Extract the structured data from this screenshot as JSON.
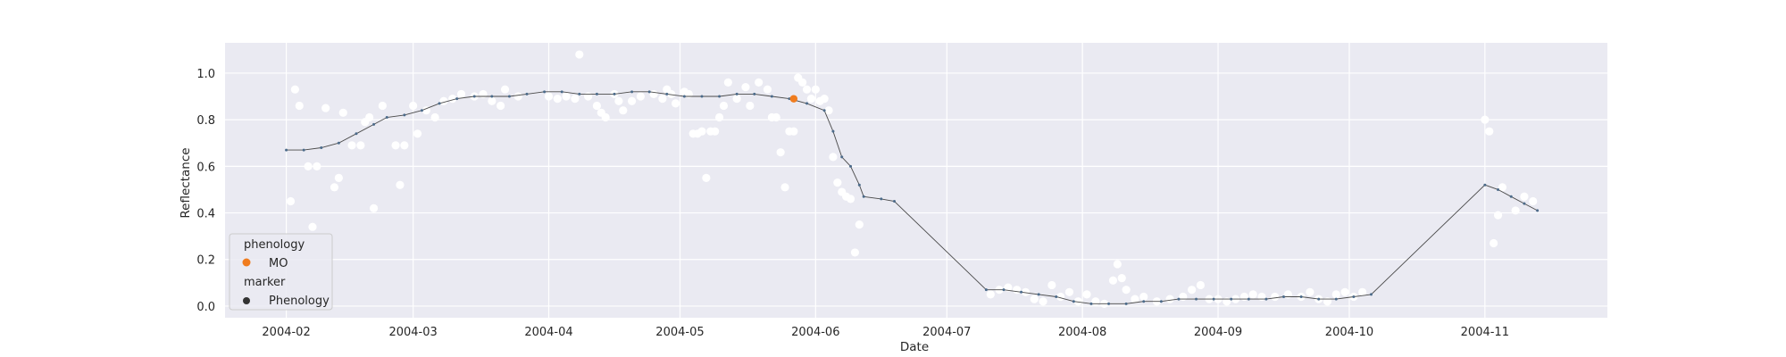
{
  "chart_data": {
    "type": "scatter",
    "title": "",
    "xlabel": "Date",
    "ylabel": "Reflectance",
    "xlim": [
      "2004-01-18",
      "2004-11-29"
    ],
    "ylim": [
      -0.05,
      1.13
    ],
    "x_ticks": [
      "2004-02-01",
      "2004-03-01",
      "2004-04-01",
      "2004-05-01",
      "2004-06-01",
      "2004-07-01",
      "2004-08-01",
      "2004-09-01",
      "2004-10-01",
      "2004-11-01"
    ],
    "x_tick_labels": [
      "2004-02",
      "2004-03",
      "2004-04",
      "2004-05",
      "2004-06",
      "2004-07",
      "2004-08",
      "2004-09",
      "2004-10",
      "2004-11"
    ],
    "y_ticks": [
      0.0,
      0.2,
      0.4,
      0.6,
      0.8,
      1.0
    ],
    "y_tick_labels": [
      "0.0",
      "0.2",
      "0.4",
      "0.6",
      "0.8",
      "1.0"
    ],
    "grid": true,
    "legend": {
      "placement": "lower-left",
      "title1": "phenology",
      "entry1": "MO",
      "title2": "marker",
      "entry2": "Phenology"
    },
    "colors": {
      "background": "#eaeaf2",
      "grid": "#ffffff",
      "observations": "#ffffff",
      "smoothed_line": "#4a4a4a",
      "smoothed_markers": "#4c6b8a",
      "phenology_mo": "#f07c1e",
      "marker_legend": "#333333"
    },
    "series": [
      {
        "role": "observations",
        "points": [
          [
            "2004-02-02",
            0.45
          ],
          [
            "2004-02-03",
            0.93
          ],
          [
            "2004-02-04",
            0.86
          ],
          [
            "2004-02-06",
            0.6
          ],
          [
            "2004-02-07",
            0.34
          ],
          [
            "2004-02-08",
            0.6
          ],
          [
            "2004-02-10",
            0.85
          ],
          [
            "2004-02-12",
            0.51
          ],
          [
            "2004-02-13",
            0.55
          ],
          [
            "2004-02-14",
            0.83
          ],
          [
            "2004-02-16",
            0.69
          ],
          [
            "2004-02-18",
            0.69
          ],
          [
            "2004-02-19",
            0.79
          ],
          [
            "2004-02-20",
            0.81
          ],
          [
            "2004-02-21",
            0.42
          ],
          [
            "2004-02-23",
            0.86
          ],
          [
            "2004-02-26",
            0.69
          ],
          [
            "2004-02-27",
            0.52
          ],
          [
            "2004-02-28",
            0.69
          ],
          [
            "2004-03-01",
            0.86
          ],
          [
            "2004-03-02",
            0.74
          ],
          [
            "2004-03-04",
            0.84
          ],
          [
            "2004-03-06",
            0.81
          ],
          [
            "2004-03-08",
            0.88
          ],
          [
            "2004-03-10",
            0.89
          ],
          [
            "2004-03-12",
            0.91
          ],
          [
            "2004-03-15",
            0.9
          ],
          [
            "2004-03-17",
            0.91
          ],
          [
            "2004-03-19",
            0.88
          ],
          [
            "2004-03-21",
            0.86
          ],
          [
            "2004-03-22",
            0.93
          ],
          [
            "2004-03-25",
            0.9
          ],
          [
            "2004-04-01",
            0.9
          ],
          [
            "2004-04-03",
            0.89
          ],
          [
            "2004-04-05",
            0.9
          ],
          [
            "2004-04-07",
            0.89
          ],
          [
            "2004-04-08",
            1.08
          ],
          [
            "2004-04-10",
            0.9
          ],
          [
            "2004-04-12",
            0.86
          ],
          [
            "2004-04-13",
            0.83
          ],
          [
            "2004-04-14",
            0.81
          ],
          [
            "2004-04-16",
            0.91
          ],
          [
            "2004-04-17",
            0.88
          ],
          [
            "2004-04-18",
            0.84
          ],
          [
            "2004-04-20",
            0.88
          ],
          [
            "2004-04-22",
            0.9
          ],
          [
            "2004-04-25",
            0.91
          ],
          [
            "2004-04-27",
            0.89
          ],
          [
            "2004-04-28",
            0.93
          ],
          [
            "2004-04-29",
            0.91
          ],
          [
            "2004-04-30",
            0.87
          ],
          [
            "2004-05-02",
            0.92
          ],
          [
            "2004-05-03",
            0.91
          ],
          [
            "2004-05-04",
            0.74
          ],
          [
            "2004-05-05",
            0.74
          ],
          [
            "2004-05-06",
            0.75
          ],
          [
            "2004-05-07",
            0.55
          ],
          [
            "2004-05-08",
            0.75
          ],
          [
            "2004-05-09",
            0.75
          ],
          [
            "2004-05-10",
            0.81
          ],
          [
            "2004-05-11",
            0.86
          ],
          [
            "2004-05-12",
            0.96
          ],
          [
            "2004-05-14",
            0.89
          ],
          [
            "2004-05-16",
            0.94
          ],
          [
            "2004-05-17",
            0.86
          ],
          [
            "2004-05-19",
            0.96
          ],
          [
            "2004-05-21",
            0.93
          ],
          [
            "2004-05-22",
            0.81
          ],
          [
            "2004-05-23",
            0.81
          ],
          [
            "2004-05-24",
            0.66
          ],
          [
            "2004-05-25",
            0.51
          ],
          [
            "2004-05-26",
            0.75
          ],
          [
            "2004-05-27",
            0.75
          ],
          [
            "2004-05-28",
            0.98
          ],
          [
            "2004-05-29",
            0.96
          ],
          [
            "2004-05-30",
            0.93
          ],
          [
            "2004-05-31",
            0.89
          ],
          [
            "2004-06-01",
            0.93
          ],
          [
            "2004-06-02",
            0.88
          ],
          [
            "2004-06-03",
            0.89
          ],
          [
            "2004-06-04",
            0.84
          ],
          [
            "2004-06-05",
            0.64
          ],
          [
            "2004-06-06",
            0.53
          ],
          [
            "2004-06-07",
            0.49
          ],
          [
            "2004-06-08",
            0.47
          ],
          [
            "2004-06-09",
            0.46
          ],
          [
            "2004-06-10",
            0.23
          ],
          [
            "2004-06-11",
            0.35
          ],
          [
            "2004-07-11",
            0.05
          ],
          [
            "2004-07-13",
            0.07
          ],
          [
            "2004-07-15",
            0.08
          ],
          [
            "2004-07-17",
            0.07
          ],
          [
            "2004-07-19",
            0.06
          ],
          [
            "2004-07-21",
            0.03
          ],
          [
            "2004-07-23",
            0.02
          ],
          [
            "2004-07-25",
            0.09
          ],
          [
            "2004-07-27",
            0.04
          ],
          [
            "2004-07-29",
            0.06
          ],
          [
            "2004-07-31",
            0.02
          ],
          [
            "2004-08-02",
            0.05
          ],
          [
            "2004-08-04",
            0.02
          ],
          [
            "2004-08-06",
            0.01
          ],
          [
            "2004-08-08",
            0.11
          ],
          [
            "2004-08-09",
            0.18
          ],
          [
            "2004-08-10",
            0.12
          ],
          [
            "2004-08-11",
            0.07
          ],
          [
            "2004-08-13",
            0.03
          ],
          [
            "2004-08-15",
            0.04
          ],
          [
            "2004-08-18",
            0.02
          ],
          [
            "2004-08-21",
            0.03
          ],
          [
            "2004-08-24",
            0.04
          ],
          [
            "2004-08-26",
            0.07
          ],
          [
            "2004-08-28",
            0.09
          ],
          [
            "2004-08-30",
            0.03
          ],
          [
            "2004-09-01",
            0.03
          ],
          [
            "2004-09-03",
            0.02
          ],
          [
            "2004-09-05",
            0.03
          ],
          [
            "2004-09-07",
            0.04
          ],
          [
            "2004-09-09",
            0.05
          ],
          [
            "2004-09-11",
            0.04
          ],
          [
            "2004-09-14",
            0.04
          ],
          [
            "2004-09-17",
            0.05
          ],
          [
            "2004-09-20",
            0.04
          ],
          [
            "2004-09-22",
            0.06
          ],
          [
            "2004-09-24",
            0.03
          ],
          [
            "2004-09-26",
            0.02
          ],
          [
            "2004-09-28",
            0.05
          ],
          [
            "2004-09-30",
            0.06
          ],
          [
            "2004-10-02",
            0.04
          ],
          [
            "2004-10-04",
            0.06
          ],
          [
            "2004-11-01",
            0.8
          ],
          [
            "2004-11-02",
            0.75
          ],
          [
            "2004-11-03",
            0.27
          ],
          [
            "2004-11-04",
            0.39
          ],
          [
            "2004-11-05",
            0.51
          ],
          [
            "2004-11-08",
            0.41
          ],
          [
            "2004-11-10",
            0.47
          ],
          [
            "2004-11-12",
            0.45
          ]
        ]
      },
      {
        "role": "smoothed",
        "points": [
          [
            "2004-02-01",
            0.67
          ],
          [
            "2004-02-05",
            0.67
          ],
          [
            "2004-02-09",
            0.68
          ],
          [
            "2004-02-13",
            0.7
          ],
          [
            "2004-02-17",
            0.74
          ],
          [
            "2004-02-21",
            0.78
          ],
          [
            "2004-02-24",
            0.81
          ],
          [
            "2004-02-28",
            0.82
          ],
          [
            "2004-03-03",
            0.84
          ],
          [
            "2004-03-07",
            0.87
          ],
          [
            "2004-03-11",
            0.89
          ],
          [
            "2004-03-15",
            0.9
          ],
          [
            "2004-03-19",
            0.9
          ],
          [
            "2004-03-23",
            0.9
          ],
          [
            "2004-03-27",
            0.91
          ],
          [
            "2004-03-31",
            0.92
          ],
          [
            "2004-04-04",
            0.92
          ],
          [
            "2004-04-08",
            0.91
          ],
          [
            "2004-04-12",
            0.91
          ],
          [
            "2004-04-16",
            0.91
          ],
          [
            "2004-04-20",
            0.92
          ],
          [
            "2004-04-24",
            0.92
          ],
          [
            "2004-04-28",
            0.91
          ],
          [
            "2004-05-02",
            0.9
          ],
          [
            "2004-05-06",
            0.9
          ],
          [
            "2004-05-10",
            0.9
          ],
          [
            "2004-05-14",
            0.91
          ],
          [
            "2004-05-18",
            0.91
          ],
          [
            "2004-05-22",
            0.9
          ],
          [
            "2004-05-26",
            0.89
          ],
          [
            "2004-05-30",
            0.87
          ],
          [
            "2004-06-03",
            0.84
          ],
          [
            "2004-06-05",
            0.75
          ],
          [
            "2004-06-07",
            0.64
          ],
          [
            "2004-06-09",
            0.6
          ],
          [
            "2004-06-11",
            0.52
          ],
          [
            "2004-06-12",
            0.47
          ],
          [
            "2004-06-16",
            0.46
          ],
          [
            "2004-06-19",
            0.45
          ],
          [
            "2004-07-10",
            0.07
          ],
          [
            "2004-07-14",
            0.07
          ],
          [
            "2004-07-18",
            0.06
          ],
          [
            "2004-07-22",
            0.05
          ],
          [
            "2004-07-26",
            0.04
          ],
          [
            "2004-07-30",
            0.02
          ],
          [
            "2004-08-03",
            0.01
          ],
          [
            "2004-08-07",
            0.01
          ],
          [
            "2004-08-11",
            0.01
          ],
          [
            "2004-08-15",
            0.02
          ],
          [
            "2004-08-19",
            0.02
          ],
          [
            "2004-08-23",
            0.03
          ],
          [
            "2004-08-27",
            0.03
          ],
          [
            "2004-08-31",
            0.03
          ],
          [
            "2004-09-04",
            0.03
          ],
          [
            "2004-09-08",
            0.03
          ],
          [
            "2004-09-12",
            0.03
          ],
          [
            "2004-09-16",
            0.04
          ],
          [
            "2004-09-20",
            0.04
          ],
          [
            "2004-09-24",
            0.03
          ],
          [
            "2004-09-28",
            0.03
          ],
          [
            "2004-10-02",
            0.04
          ],
          [
            "2004-10-06",
            0.05
          ],
          [
            "2004-11-01",
            0.52
          ],
          [
            "2004-11-04",
            0.5
          ],
          [
            "2004-11-07",
            0.47
          ],
          [
            "2004-11-10",
            0.44
          ],
          [
            "2004-11-13",
            0.41
          ]
        ]
      },
      {
        "role": "phenology",
        "points": [
          [
            "2004-05-27",
            0.89
          ]
        ]
      }
    ]
  }
}
